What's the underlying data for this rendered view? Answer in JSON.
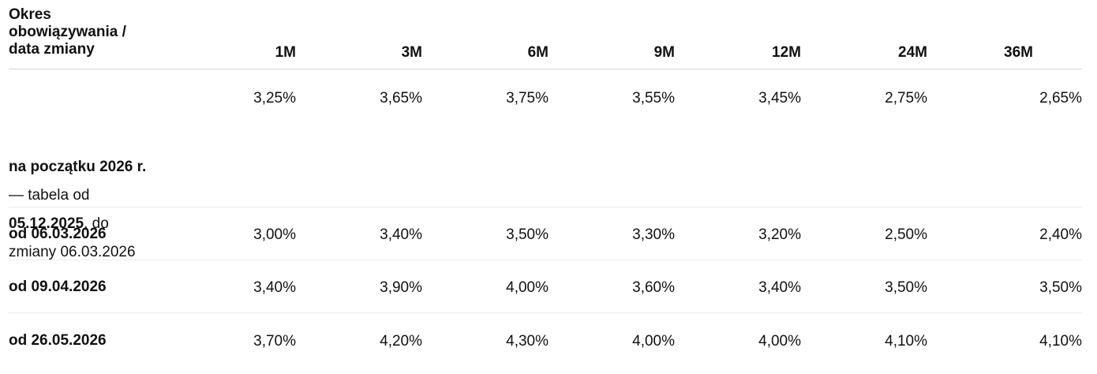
{
  "table": {
    "header": {
      "label_line1": "Okres",
      "label_line2": "obowiązywania /",
      "label_line3": "data zmiany",
      "columns": [
        "1M",
        "3M",
        "6M",
        "9M",
        "12M",
        "24M",
        "36M"
      ]
    },
    "rows": [
      {
        "label_bold": "na początku 2026 r.",
        "label_line2": "— tabela od",
        "label_line3_bold": "05.12.2025",
        "label_line3_rest": ", do",
        "label_line4": "zmiany 06.03.2026",
        "values": [
          "3,25%",
          "3,65%",
          "3,75%",
          "3,55%",
          "3,45%",
          "2,75%",
          "2,65%"
        ]
      },
      {
        "label_bold": "od 06.03.2026",
        "values": [
          "3,00%",
          "3,40%",
          "3,50%",
          "3,30%",
          "3,20%",
          "2,50%",
          "2,40%"
        ]
      },
      {
        "label_bold": "od 09.04.2026",
        "values": [
          "3,40%",
          "3,90%",
          "4,00%",
          "3,60%",
          "3,40%",
          "3,50%",
          "3,50%"
        ]
      },
      {
        "label_bold": "od 26.05.2026",
        "values": [
          "3,70%",
          "4,20%",
          "4,30%",
          "4,00%",
          "4,00%",
          "4,10%",
          "4,10%"
        ]
      }
    ]
  }
}
